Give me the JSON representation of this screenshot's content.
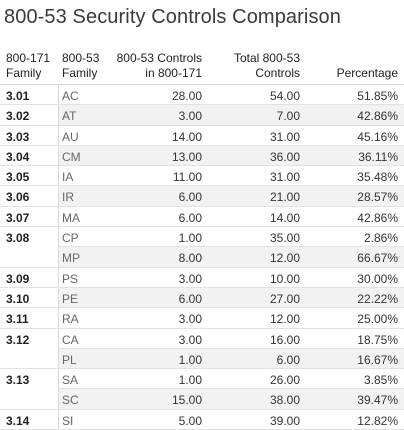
{
  "title": "800-53 Security Controls Comparison",
  "headers": {
    "family_171": "800-171 Family",
    "family_53": "800-53 Family",
    "controls_in_171": "800-53 Controls in 800-171",
    "total_53": "Total 800-53 Controls",
    "percentage": "Percentage"
  },
  "rows": [
    {
      "fam": "3.01",
      "c2": "AC",
      "c3": "28.00",
      "c4": "54.00",
      "c5": "51.85%"
    },
    {
      "fam": "3.02",
      "c2": "AT",
      "c3": "3.00",
      "c4": "7.00",
      "c5": "42.86%"
    },
    {
      "fam": "3.03",
      "c2": "AU",
      "c3": "14.00",
      "c4": "31.00",
      "c5": "45.16%"
    },
    {
      "fam": "3.04",
      "c2": "CM",
      "c3": "13.00",
      "c4": "36.00",
      "c5": "36.11%"
    },
    {
      "fam": "3.05",
      "c2": "IA",
      "c3": "11.00",
      "c4": "31.00",
      "c5": "35.48%"
    },
    {
      "fam": "3.06",
      "c2": "IR",
      "c3": "6.00",
      "c4": "21.00",
      "c5": "28.57%"
    },
    {
      "fam": "3.07",
      "c2": "MA",
      "c3": "6.00",
      "c4": "14.00",
      "c5": "42.86%"
    },
    {
      "fam": "3.08",
      "c2": "CP",
      "c3": "1.00",
      "c4": "35.00",
      "c5": "2.86%"
    },
    {
      "fam": "",
      "c2": "MP",
      "c3": "8.00",
      "c4": "12.00",
      "c5": "66.67%"
    },
    {
      "fam": "3.09",
      "c2": "PS",
      "c3": "3.00",
      "c4": "10.00",
      "c5": "30.00%"
    },
    {
      "fam": "3.10",
      "c2": "PE",
      "c3": "6.00",
      "c4": "27.00",
      "c5": "22.22%"
    },
    {
      "fam": "3.11",
      "c2": "RA",
      "c3": "3.00",
      "c4": "12.00",
      "c5": "25.00%"
    },
    {
      "fam": "3.12",
      "c2": "CA",
      "c3": "3.00",
      "c4": "16.00",
      "c5": "18.75%"
    },
    {
      "fam": "",
      "c2": "PL",
      "c3": "1.00",
      "c4": "6.00",
      "c5": "16.67%"
    },
    {
      "fam": "3.13",
      "c2": "SA",
      "c3": "1.00",
      "c4": "26.00",
      "c5": "3.85%"
    },
    {
      "fam": "",
      "c2": "SC",
      "c3": "15.00",
      "c4": "38.00",
      "c5": "39.47%"
    },
    {
      "fam": "3.14",
      "c2": "SI",
      "c3": "5.00",
      "c4": "39.00",
      "c5": "12.82%"
    }
  ]
}
